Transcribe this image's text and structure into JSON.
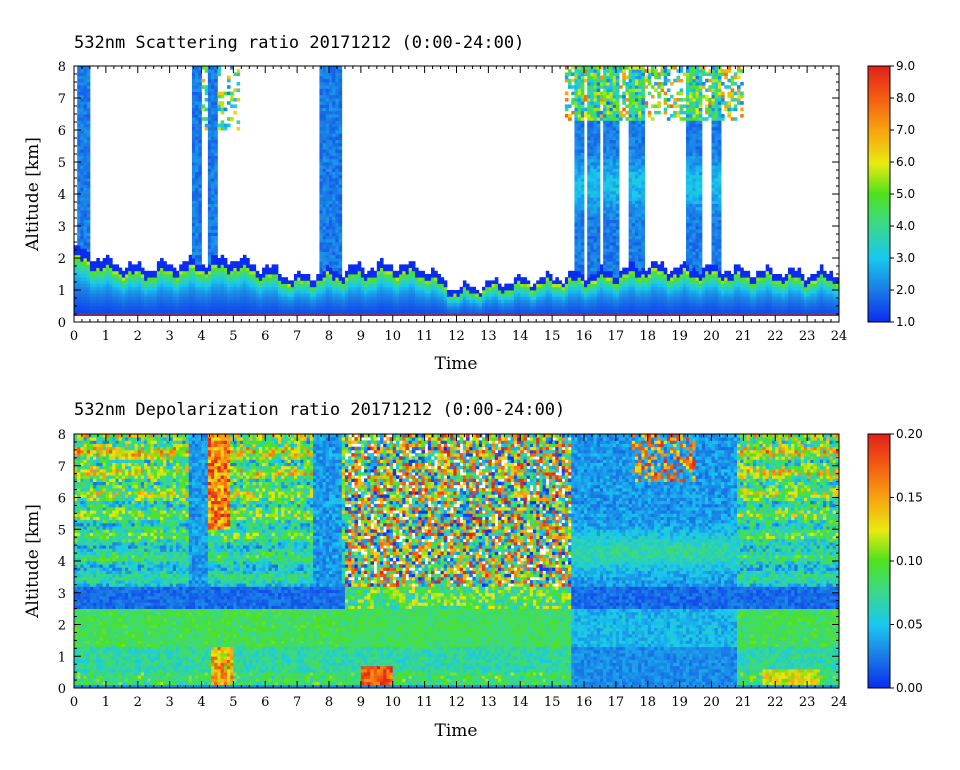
{
  "chart_data": [
    {
      "type": "heatmap",
      "title": "532nm Scattering ratio  20171212 (0:00-24:00)",
      "xlabel": "Time",
      "ylabel": "Altitude [km]",
      "xlim": [
        0,
        24
      ],
      "ylim": [
        0,
        8
      ],
      "xticks": [
        "0",
        "1",
        "2",
        "3",
        "4",
        "5",
        "6",
        "7",
        "8",
        "9",
        "10",
        "11",
        "12",
        "13",
        "14",
        "15",
        "16",
        "17",
        "18",
        "19",
        "20",
        "21",
        "22",
        "23",
        "24"
      ],
      "yticks": [
        "0",
        "1",
        "2",
        "3",
        "4",
        "5",
        "6",
        "7",
        "8"
      ],
      "colorbar": {
        "min": 1.0,
        "max": 9.0,
        "ticks": [
          "1.0",
          "2.0",
          "3.0",
          "4.0",
          "5.0",
          "6.0",
          "7.0",
          "8.0",
          "9.0"
        ]
      },
      "features": {
        "boundary_layer_top_km": [
          2.3,
          1.9,
          1.7,
          1.8,
          1.9,
          2.0,
          1.7,
          1.4,
          1.6,
          1.7,
          1.8,
          1.7,
          1.0,
          1.2,
          1.3,
          1.4,
          1.5,
          1.6,
          1.8,
          1.7,
          1.7,
          1.6,
          1.6,
          1.5,
          1.6,
          1.9
        ],
        "cloud_columns_hours": [
          [
            0.1,
            0.45
          ],
          [
            3.75,
            4.0
          ],
          [
            4.2,
            4.5
          ],
          [
            7.75,
            8.45
          ],
          [
            15.75,
            16.0
          ],
          [
            16.1,
            16.45
          ],
          [
            16.65,
            17.1
          ],
          [
            17.4,
            17.9
          ],
          [
            19.2,
            19.65
          ],
          [
            20.0,
            20.25
          ]
        ]
      }
    },
    {
      "type": "heatmap",
      "title": "532nm Depolarization ratio  20171212 (0:00-24:00)",
      "xlabel": "Time",
      "ylabel": "Altitude [km]",
      "xlim": [
        0,
        24
      ],
      "ylim": [
        0,
        8
      ],
      "xticks": [
        "0",
        "1",
        "2",
        "3",
        "4",
        "5",
        "6",
        "7",
        "8",
        "9",
        "10",
        "11",
        "12",
        "13",
        "14",
        "15",
        "16",
        "17",
        "18",
        "19",
        "20",
        "21",
        "22",
        "23",
        "24"
      ],
      "yticks": [
        "0",
        "1",
        "2",
        "3",
        "4",
        "5",
        "6",
        "7",
        "8"
      ],
      "colorbar": {
        "min": 0.0,
        "max": 0.2,
        "ticks": [
          "0.00",
          "0.05",
          "0.10",
          "0.15",
          "0.20"
        ]
      },
      "features": {
        "noisy_region_hours": [
          [
            8.5,
            15.6
          ]
        ],
        "high_depol_near_ground_hours": [
          [
            9.0,
            10.0
          ]
        ]
      }
    }
  ]
}
